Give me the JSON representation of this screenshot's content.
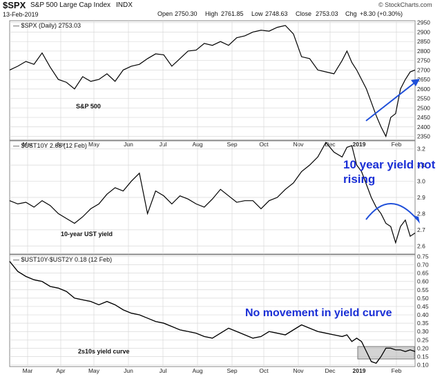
{
  "header": {
    "symbol": "$SPX",
    "name": "S&P 500 Large Cap Index",
    "exchange": "INDX",
    "date": "13-Feb-2019",
    "open_label": "Open",
    "open": "2750.30",
    "high_label": "High",
    "high": "2761.85",
    "low_label": "Low",
    "low": "2748.63",
    "close_label": "Close",
    "close": "2753.03",
    "chg_label": "Chg",
    "chg": "+8.30 (+0.30%)",
    "watermark": "© StockCharts.com"
  },
  "colors": {
    "price_line": "#000000",
    "annotation_blue": "#1a2fd6",
    "arrow_blue": "#1f4fd9",
    "grid": "#d8d8d8",
    "highlight_box": "#b8b8b8"
  },
  "chart_data": [
    {
      "type": "line",
      "panel": "top",
      "legend": "$SPX (Daily) 2753.03",
      "label": "S&P 500",
      "x_ticks": [
        "Mar",
        "Apr",
        "May",
        "Jun",
        "Jul",
        "Aug",
        "Sep",
        "Oct",
        "Nov",
        "Dec",
        "2019",
        "Feb"
      ],
      "y_ticks": [
        2350,
        2400,
        2450,
        2500,
        2550,
        2600,
        2650,
        2700,
        2750,
        2800,
        2850,
        2900,
        2950
      ],
      "ylim": [
        2330,
        2960
      ],
      "annotation": "rising arrow from late Dec to Feb",
      "x": [
        0,
        5,
        10,
        15,
        20,
        25,
        30,
        35,
        40,
        45,
        50,
        55,
        60,
        65,
        70,
        75,
        80,
        85,
        90,
        95,
        100,
        105,
        110,
        115,
        120,
        125,
        130,
        135,
        140,
        145,
        150,
        155,
        160,
        165,
        170,
        175,
        180,
        185,
        190,
        195,
        200,
        205,
        208,
        211,
        214,
        217,
        220,
        223,
        226,
        229,
        232,
        235,
        238,
        241,
        244,
        247,
        250
      ],
      "values": [
        2700,
        2720,
        2745,
        2730,
        2790,
        2715,
        2650,
        2635,
        2600,
        2665,
        2640,
        2650,
        2680,
        2640,
        2700,
        2720,
        2730,
        2760,
        2785,
        2780,
        2720,
        2760,
        2800,
        2805,
        2840,
        2830,
        2850,
        2830,
        2870,
        2880,
        2900,
        2910,
        2905,
        2925,
        2935,
        2890,
        2770,
        2760,
        2700,
        2690,
        2680,
        2750,
        2800,
        2740,
        2700,
        2650,
        2600,
        2530,
        2460,
        2400,
        2350,
        2450,
        2470,
        2600,
        2650,
        2690,
        2700
      ]
    },
    {
      "type": "line",
      "panel": "middle",
      "legend": "$UST10Y 2.68 (12 Feb)",
      "label": "10-year UST yield",
      "annotation": "10 year yield not rising",
      "x_ticks": [],
      "y_ticks": [
        2.6,
        2.7,
        2.8,
        2.9,
        3.0,
        3.1,
        3.2
      ],
      "ylim": [
        2.55,
        3.25
      ],
      "x": [
        0,
        5,
        10,
        15,
        20,
        25,
        30,
        35,
        40,
        45,
        50,
        55,
        60,
        65,
        70,
        75,
        80,
        85,
        90,
        95,
        100,
        105,
        110,
        115,
        120,
        125,
        130,
        135,
        140,
        145,
        150,
        155,
        160,
        165,
        170,
        175,
        180,
        185,
        190,
        195,
        200,
        205,
        208,
        211,
        214,
        217,
        220,
        223,
        226,
        229,
        232,
        235,
        238,
        241,
        244,
        247,
        250
      ],
      "values": [
        2.88,
        2.86,
        2.87,
        2.84,
        2.88,
        2.85,
        2.8,
        2.77,
        2.74,
        2.78,
        2.83,
        2.86,
        2.92,
        2.96,
        2.94,
        3.0,
        3.05,
        2.8,
        2.94,
        2.91,
        2.86,
        2.91,
        2.89,
        2.86,
        2.84,
        2.89,
        2.95,
        2.91,
        2.87,
        2.88,
        2.88,
        2.83,
        2.88,
        2.9,
        2.95,
        2.99,
        3.06,
        3.1,
        3.15,
        3.24,
        3.18,
        3.15,
        3.21,
        3.22,
        3.1,
        3.06,
        2.98,
        2.9,
        2.84,
        2.8,
        2.74,
        2.72,
        2.62,
        2.72,
        2.76,
        2.66,
        2.68
      ]
    },
    {
      "type": "line",
      "panel": "bottom",
      "legend": "$UST10Y-$UST2Y 0.18 (12 Feb)",
      "label": "2s10s yield curve",
      "annotation": "No movement in yield curve",
      "x_ticks": [
        "Mar",
        "Apr",
        "May",
        "Jun",
        "Jul",
        "Aug",
        "Sep",
        "Oct",
        "Nov",
        "Dec",
        "2019",
        "Feb"
      ],
      "y_ticks": [
        0.1,
        0.15,
        0.2,
        0.25,
        0.3,
        0.35,
        0.4,
        0.45,
        0.5,
        0.55,
        0.6,
        0.65,
        0.7,
        0.75
      ],
      "ylim": [
        0.09,
        0.76
      ],
      "x": [
        0,
        5,
        10,
        15,
        20,
        25,
        30,
        35,
        40,
        45,
        50,
        55,
        60,
        65,
        70,
        75,
        80,
        85,
        90,
        95,
        100,
        105,
        110,
        115,
        120,
        125,
        130,
        135,
        140,
        145,
        150,
        155,
        160,
        165,
        170,
        175,
        180,
        185,
        190,
        195,
        200,
        205,
        208,
        211,
        214,
        217,
        220,
        223,
        226,
        229,
        232,
        235,
        238,
        241,
        244,
        247,
        250
      ],
      "values": [
        0.72,
        0.66,
        0.63,
        0.61,
        0.6,
        0.57,
        0.56,
        0.54,
        0.5,
        0.49,
        0.48,
        0.46,
        0.48,
        0.46,
        0.43,
        0.41,
        0.4,
        0.38,
        0.36,
        0.35,
        0.33,
        0.31,
        0.3,
        0.29,
        0.27,
        0.26,
        0.29,
        0.32,
        0.3,
        0.28,
        0.26,
        0.27,
        0.3,
        0.29,
        0.28,
        0.31,
        0.34,
        0.32,
        0.3,
        0.29,
        0.28,
        0.27,
        0.28,
        0.24,
        0.26,
        0.24,
        0.18,
        0.12,
        0.11,
        0.15,
        0.2,
        0.2,
        0.19,
        0.19,
        0.18,
        0.19,
        0.18
      ]
    }
  ]
}
